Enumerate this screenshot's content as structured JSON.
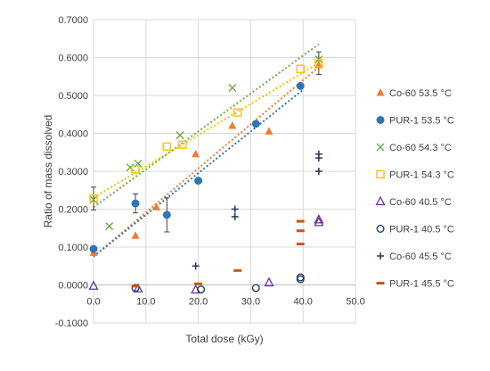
{
  "chart_data": {
    "type": "scatter",
    "xlabel": "Total dose (kGy)",
    "ylabel": "Ratio of mass dissolved",
    "xlim": [
      0,
      50
    ],
    "ylim": [
      -0.1,
      0.7
    ],
    "xticks": [
      "0.0",
      "10.0",
      "20.0",
      "30.0",
      "40.0",
      "50.0"
    ],
    "yticks": [
      "-0.1000",
      "0.0000",
      "0.1000",
      "0.2000",
      "0.3000",
      "0.4000",
      "0.5000",
      "0.6000",
      "0.7000"
    ],
    "grid": true,
    "legend_position": "right",
    "series": [
      {
        "name": "Co-60 53.5 °C",
        "marker": "triangle",
        "color": "#ED7D31",
        "points": [
          [
            0,
            0.085
          ],
          [
            8,
            0.13
          ],
          [
            12,
            0.205
          ],
          [
            19.5,
            0.345
          ],
          [
            26.5,
            0.42
          ],
          [
            33.5,
            0.405
          ],
          [
            43,
            0.58
          ]
        ],
        "trendline": {
          "color": "#ED7D31",
          "from": [
            0,
            0.075
          ],
          "to": [
            43,
            0.575
          ]
        }
      },
      {
        "name": "PUR-1 53.5 °C",
        "marker": "circle",
        "color": "#2E75B6",
        "points": [
          [
            0,
            0.095
          ],
          [
            8,
            0.215
          ],
          [
            14,
            0.185
          ],
          [
            20,
            0.275
          ],
          [
            31,
            0.425
          ],
          [
            39.5,
            0.525
          ]
        ],
        "error_bars": [
          {
            "x": 8,
            "y": 0.215,
            "err": 0.025
          },
          {
            "x": 14,
            "y": 0.185,
            "err": 0.045
          }
        ],
        "trendline": {
          "color": "#2E75B6",
          "from": [
            0,
            0.075
          ],
          "to": [
            40,
            0.515
          ]
        }
      },
      {
        "name": "Co-60 54.3 °C",
        "marker": "x",
        "color": "#70AD47",
        "points": [
          [
            0,
            0.225
          ],
          [
            3,
            0.155
          ],
          [
            7,
            0.31
          ],
          [
            8.5,
            0.32
          ],
          [
            16.5,
            0.395
          ],
          [
            26.5,
            0.52
          ],
          [
            43,
            0.595
          ]
        ],
        "trendline": {
          "color": "#70AD47",
          "from": [
            0,
            0.205
          ],
          "to": [
            43,
            0.635
          ]
        }
      },
      {
        "name": "PUR-1 54.3 °C",
        "marker": "square-open",
        "color": "#FFC000",
        "points": [
          [
            0,
            0.228
          ],
          [
            8,
            0.305
          ],
          [
            14,
            0.365
          ],
          [
            17,
            0.37
          ],
          [
            27.5,
            0.455
          ],
          [
            39.5,
            0.57
          ],
          [
            43,
            0.585
          ]
        ],
        "error_bars": [
          {
            "x": 0,
            "y": 0.228,
            "err": 0.03
          },
          {
            "x": 43,
            "y": 0.585,
            "err": 0.03
          }
        ],
        "trendline": {
          "color": "#FFC000",
          "from": [
            0,
            0.23
          ],
          "to": [
            43,
            0.585
          ]
        }
      },
      {
        "name": "Co-60 40.5 °C",
        "marker": "triangle-open",
        "color": "#7030A0",
        "points": [
          [
            0,
            -0.003
          ],
          [
            8.5,
            -0.01
          ],
          [
            19.5,
            -0.013
          ],
          [
            33.5,
            0.006
          ],
          [
            43,
            0.165
          ],
          [
            43,
            0.172
          ]
        ]
      },
      {
        "name": "PUR-1 40.5 °C",
        "marker": "circle-open",
        "color": "#1F3864",
        "points": [
          [
            8,
            -0.008
          ],
          [
            20.5,
            -0.012
          ],
          [
            31,
            -0.008
          ],
          [
            39.5,
            0.015
          ],
          [
            39.5,
            0.02
          ]
        ]
      },
      {
        "name": "Co-60 45.5 °C",
        "marker": "plus",
        "color": "#203864",
        "points": [
          [
            19.5,
            0.05
          ],
          [
            27,
            0.18
          ],
          [
            27,
            0.2
          ],
          [
            43,
            0.3
          ],
          [
            43,
            0.335
          ],
          [
            43,
            0.345
          ]
        ]
      },
      {
        "name": "PUR-1 45.5 °C",
        "marker": "dash",
        "color": "#C55A11",
        "points": [
          [
            8,
            -0.003
          ],
          [
            20,
            0.003
          ],
          [
            27.5,
            0.038
          ],
          [
            39.5,
            0.108
          ],
          [
            39.5,
            0.143
          ],
          [
            39.5,
            0.168
          ]
        ]
      }
    ]
  }
}
